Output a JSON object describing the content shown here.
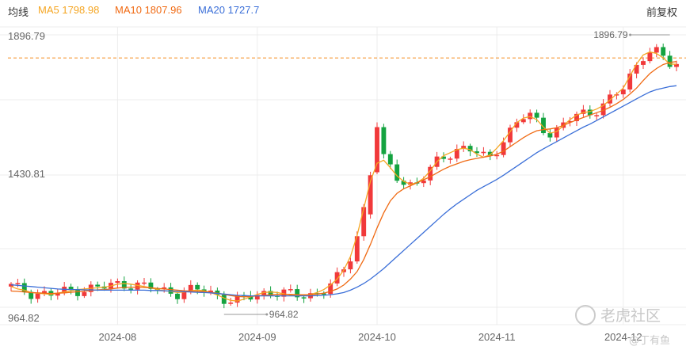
{
  "header": {
    "indicator_label": "均线",
    "ma5": "MA5 1798.98",
    "ma10": "MA10 1807.96",
    "ma20": "MA20 1727.7",
    "adjust_label": "前复权"
  },
  "colors": {
    "up": "#f1393a",
    "down": "#14a340",
    "ma5": "#f5a623",
    "ma10": "#f06a13",
    "ma20": "#3b6fd8",
    "ref_line": "#f59a3a",
    "grid": "#ececec",
    "axis_text": "#666666",
    "watermark": "#cccccc"
  },
  "watermark": {
    "logo": "老虎社区",
    "author": "@丁有鱼"
  },
  "chart_data": {
    "type": "candlestick",
    "title": "",
    "xlabel": "",
    "ylabel": "",
    "ylim": [
      964.82,
      1896.79
    ],
    "y_tick_labels": [
      "1896.79",
      "1430.81",
      "964.82"
    ],
    "x_tick_labels": [
      "2024-08",
      "2024-09",
      "2024-10",
      "2024-11",
      "2024-12"
    ],
    "x_tick_index": [
      16,
      37,
      55,
      73,
      92
    ],
    "max_marker": {
      "label": "1896.79",
      "index": 99,
      "value": 1896.79
    },
    "min_marker": {
      "label": "964.82",
      "index": 32,
      "value": 964.82
    },
    "ref_line_value": 1820,
    "grid": true,
    "series": [
      {
        "name": "MA5",
        "values": [
          1060,
          1052,
          1048,
          1040,
          1038,
          1036,
          1034,
          1038,
          1042,
          1046,
          1050,
          1052,
          1054,
          1056,
          1058,
          1062,
          1068,
          1070,
          1068,
          1064,
          1060,
          1056,
          1050,
          1046,
          1044,
          1040,
          1042,
          1046,
          1048,
          1046,
          1040,
          1032,
          1022,
          1014,
          1012,
          1018,
          1026,
          1034,
          1040,
          1042,
          1040,
          1036,
          1032,
          1030,
          1032,
          1034,
          1040,
          1050,
          1065,
          1085,
          1115,
          1160,
          1230,
          1320,
          1410,
          1470,
          1480,
          1455,
          1428,
          1410,
          1400,
          1405,
          1420,
          1445,
          1475,
          1495,
          1505,
          1515,
          1520,
          1515,
          1500,
          1490,
          1498,
          1520,
          1545,
          1575,
          1605,
          1620,
          1625,
          1615,
          1590,
          1570,
          1575,
          1595,
          1615,
          1630,
          1638,
          1642,
          1650,
          1662,
          1680,
          1700,
          1720,
          1760,
          1800,
          1830,
          1840,
          1835,
          1820,
          1800,
          1798.98
        ]
      },
      {
        "name": "MA10",
        "values": [
          1045,
          1044,
          1042,
          1040,
          1039,
          1038,
          1037,
          1038,
          1039,
          1041,
          1043,
          1045,
          1047,
          1049,
          1050,
          1052,
          1055,
          1057,
          1058,
          1058,
          1057,
          1056,
          1054,
          1052,
          1050,
          1048,
          1046,
          1045,
          1044,
          1043,
          1041,
          1038,
          1034,
          1030,
          1027,
          1026,
          1027,
          1029,
          1031,
          1033,
          1034,
          1034,
          1034,
          1033,
          1033,
          1033,
          1035,
          1038,
          1044,
          1052,
          1065,
          1085,
          1110,
          1150,
          1200,
          1255,
          1305,
          1345,
          1370,
          1385,
          1395,
          1405,
          1415,
          1425,
          1438,
          1450,
          1460,
          1468,
          1476,
          1482,
          1486,
          1490,
          1494,
          1500,
          1510,
          1525,
          1540,
          1555,
          1568,
          1578,
          1582,
          1584,
          1588,
          1596,
          1605,
          1614,
          1622,
          1630,
          1638,
          1646,
          1656,
          1668,
          1682,
          1700,
          1720,
          1745,
          1768,
          1785,
          1798,
          1805,
          1807.96
        ]
      },
      {
        "name": "MA20",
        "values": [
          1066,
          1064,
          1062,
          1060,
          1058,
          1056,
          1054,
          1052,
          1051,
          1050,
          1050,
          1049,
          1049,
          1048,
          1048,
          1048,
          1048,
          1048,
          1048,
          1048,
          1048,
          1047,
          1047,
          1046,
          1045,
          1044,
          1043,
          1042,
          1041,
          1040,
          1039,
          1037,
          1035,
          1033,
          1031,
          1030,
          1029,
          1029,
          1029,
          1029,
          1029,
          1029,
          1029,
          1029,
          1029,
          1029,
          1030,
          1031,
          1033,
          1036,
          1040,
          1048,
          1058,
          1070,
          1085,
          1102,
          1120,
          1140,
          1160,
          1180,
          1200,
          1220,
          1240,
          1260,
          1280,
          1300,
          1318,
          1335,
          1350,
          1365,
          1380,
          1392,
          1404,
          1416,
          1430,
          1445,
          1460,
          1475,
          1490,
          1505,
          1518,
          1530,
          1542,
          1554,
          1566,
          1578,
          1590,
          1600,
          1612,
          1624,
          1636,
          1648,
          1660,
          1672,
          1684,
          1696,
          1707,
          1715,
          1720,
          1725,
          1727.7
        ]
      }
    ]
  }
}
